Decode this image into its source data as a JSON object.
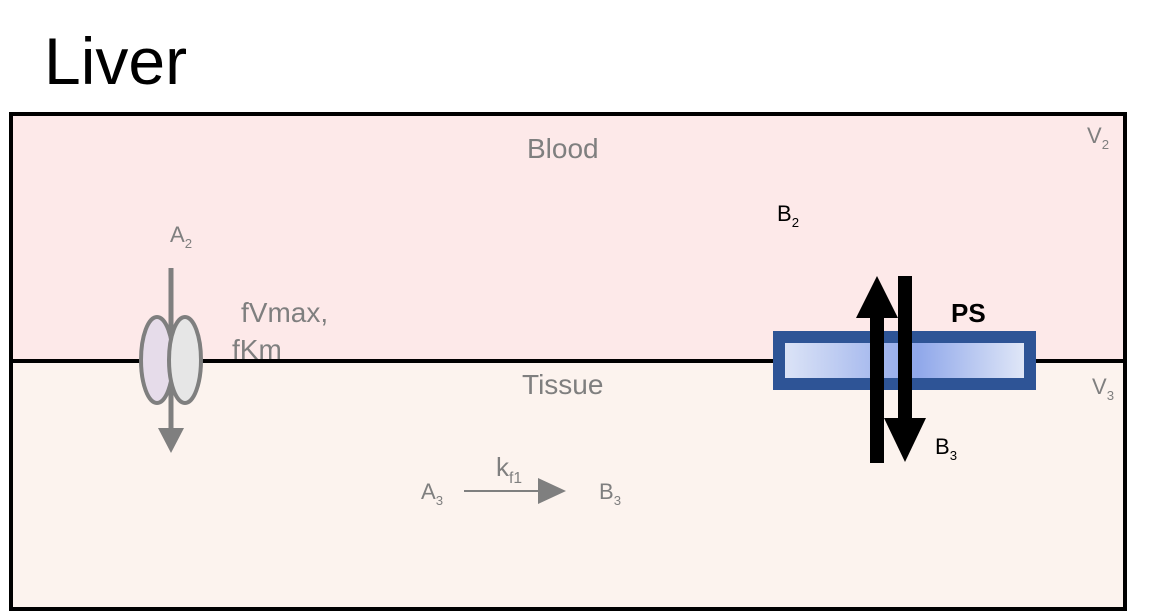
{
  "title": "Liver",
  "compartments": {
    "blood": {
      "label": "Blood",
      "volume": "V",
      "volume_sub": "2"
    },
    "tissue": {
      "label": "Tissue",
      "volume": "V",
      "volume_sub": "3"
    }
  },
  "transporter": {
    "line1": "fVmax,",
    "line2": "fKm",
    "species_in": {
      "base": "A",
      "sub": "2"
    }
  },
  "metabolism": {
    "rate": {
      "base": "k",
      "sub": "f1"
    },
    "substrate": {
      "base": "A",
      "sub": "3"
    },
    "product": {
      "base": "B",
      "sub": "3"
    }
  },
  "passive_diffusion": {
    "label": "PS",
    "blood_species": {
      "base": "B",
      "sub": "2"
    },
    "tissue_species": {
      "base": "B",
      "sub": "3"
    }
  },
  "colors": {
    "blood_fill": "#fde9e9",
    "tissue_fill": "#fcf3ee",
    "gray_text": "#7f7f7f",
    "membrane_blue": "#2e5496"
  }
}
